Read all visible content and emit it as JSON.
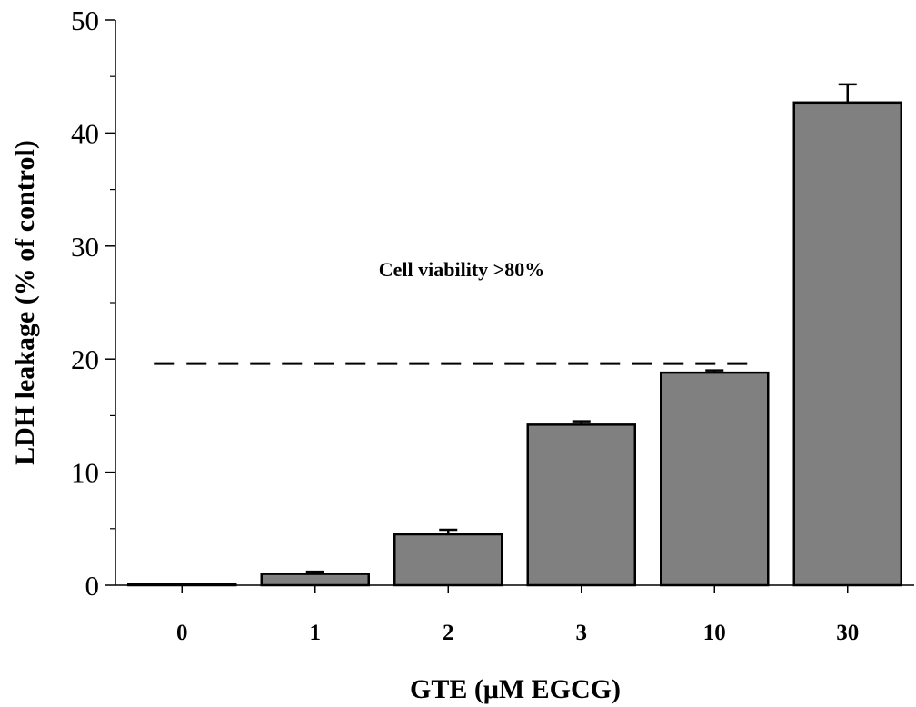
{
  "chart_data": {
    "type": "bar",
    "title": "",
    "xlabel": "GTE (μM EGCG)",
    "ylabel": "LDH leakage (% of control)",
    "categories": [
      "0",
      "1",
      "2",
      "3",
      "10",
      "30"
    ],
    "values": [
      0.1,
      1.0,
      4.5,
      14.2,
      18.8,
      42.7
    ],
    "errors": [
      0.0,
      0.2,
      0.4,
      0.3,
      0.2,
      1.6
    ],
    "ylim": [
      0,
      50
    ],
    "yticks": [
      "0",
      "10",
      "20",
      "30",
      "40",
      "50"
    ],
    "bar_color": "#808080",
    "reference_line": {
      "y": 19.6,
      "style": "dashed",
      "from_category": "0",
      "to_category": "10"
    },
    "annotation": "Cell viability >80%",
    "grid": false,
    "legend": "none"
  }
}
